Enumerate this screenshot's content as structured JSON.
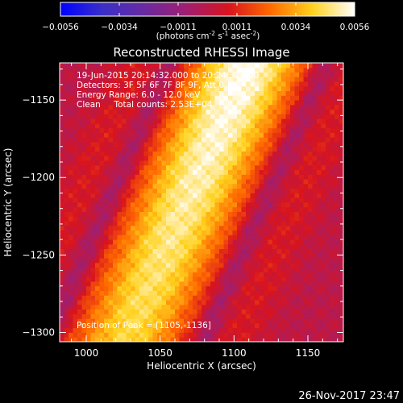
{
  "colorbar": {
    "ticks": [
      "-0.0056",
      "-0.0034",
      "-0.0011",
      "0.0011",
      "0.0034",
      "0.0056"
    ],
    "units_parts": [
      "(photons cm",
      "-2",
      " s",
      "-1",
      " asec",
      "-2",
      ")"
    ],
    "stops": [
      "#0000ff",
      "#3a2fc8",
      "#6a2aa0",
      "#a01e70",
      "#d8141e",
      "#ff6a00",
      "#ffd21e",
      "#ffffff"
    ]
  },
  "chart_data": {
    "type": "heatmap",
    "title": "Reconstructed RHESSI Image",
    "xlabel": "Heliocentric X (arcsec)",
    "ylabel": "Heliocentric Y (arcsec)",
    "xlim": [
      982,
      1174
    ],
    "ylim": [
      -1306,
      -1126
    ],
    "xticks": [
      1000,
      1050,
      1100,
      1150
    ],
    "yticks": [
      -1150,
      -1200,
      -1250,
      -1300
    ],
    "annotation_lines": [
      "19-Jun-2015 20:14:32.000 to 20:24:32.000",
      "Detectors: 3F 5F 6F 7F 8F 9F, Att 0",
      "Energy Range: 6.0 - 12.0 keV",
      "Clean     Total counts: 2.53E+04"
    ],
    "peak_label": "Position of Peak = [1105,-1136]",
    "peak_position": [
      1105,
      -1136
    ],
    "source": {
      "ridge_points": [
        [
          1026,
          -1306
        ],
        [
          1105,
          -1136
        ]
      ],
      "core_half_width_arcsec": 45,
      "peak_value": 0.0056
    }
  },
  "footer": {
    "date": "26-Nov-2017 23:47"
  }
}
